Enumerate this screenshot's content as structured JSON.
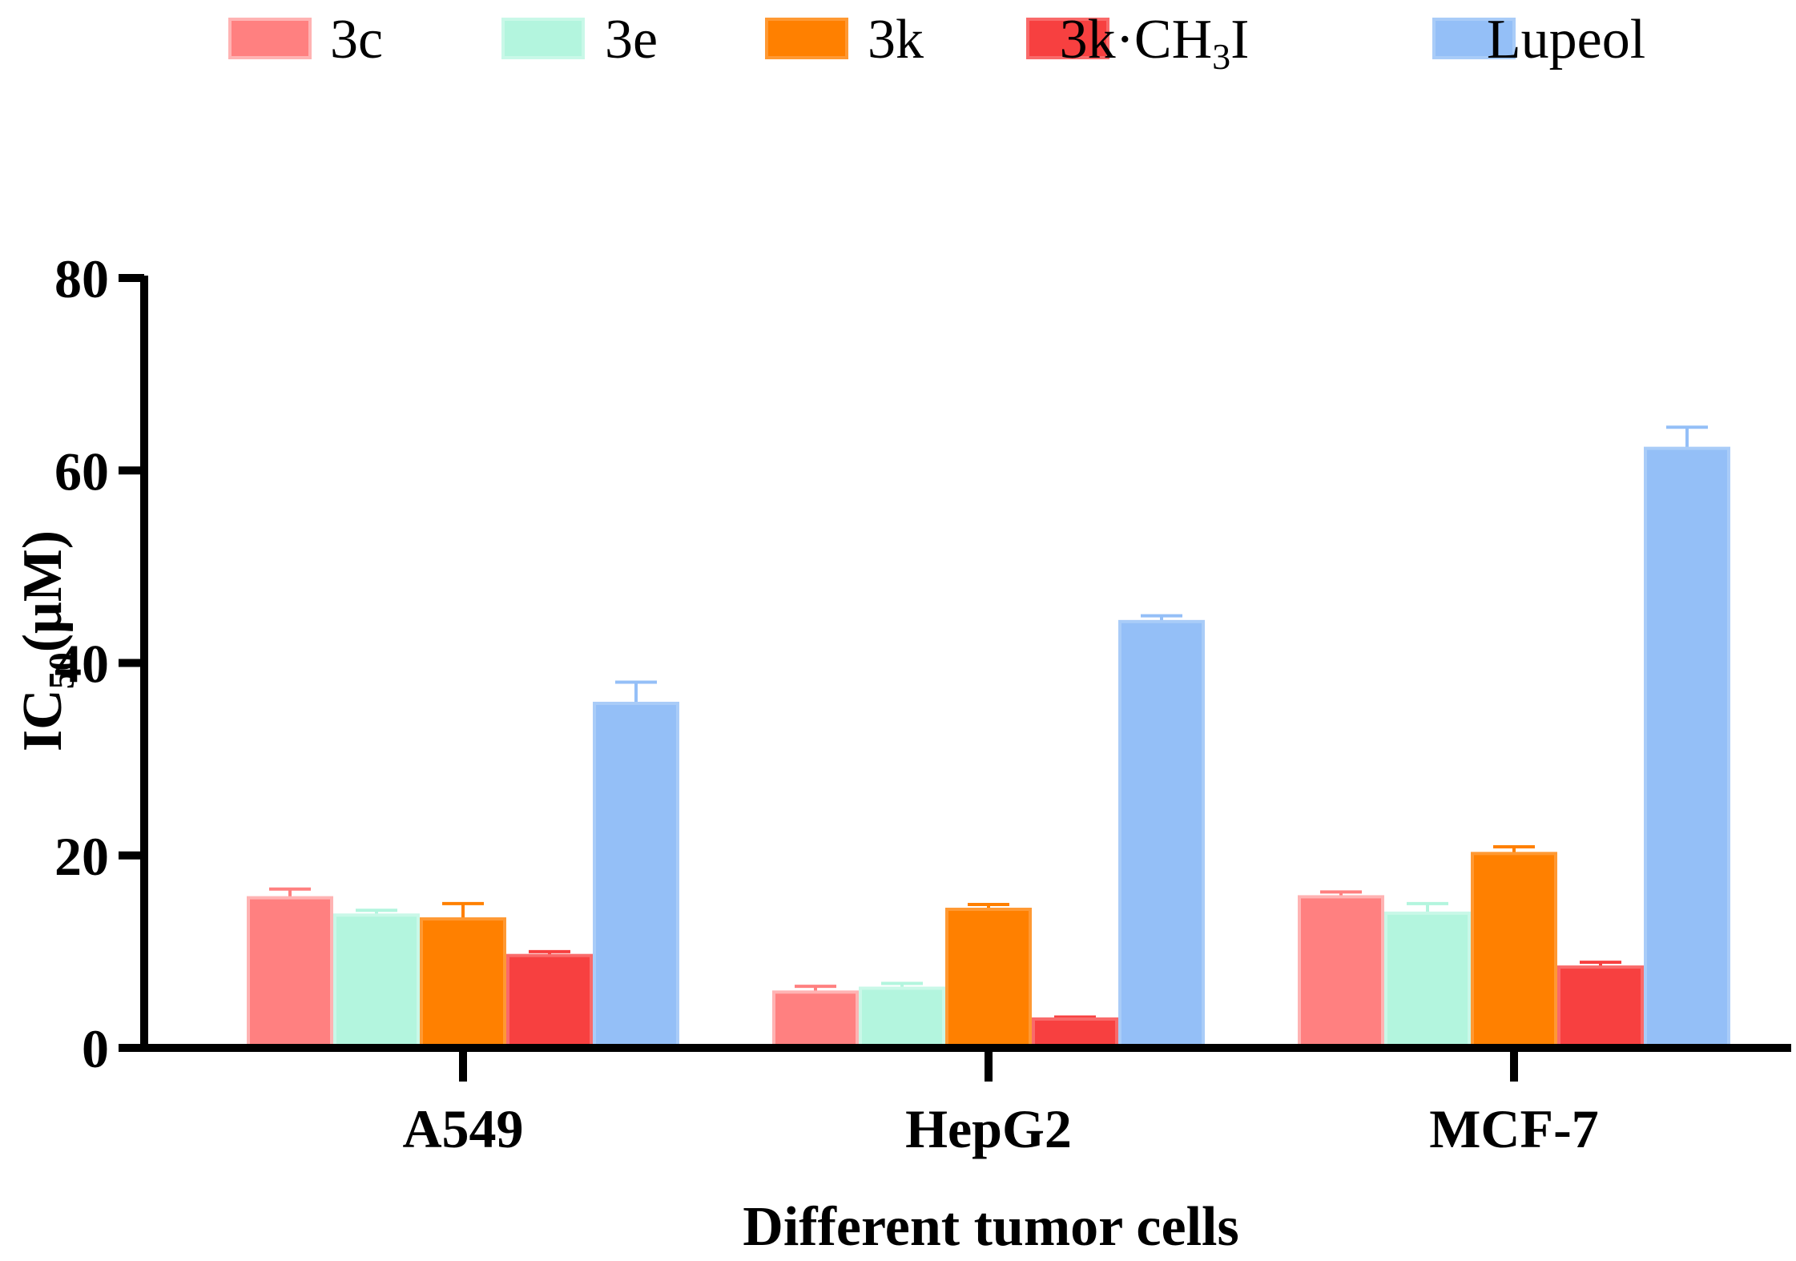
{
  "chart_data": {
    "type": "bar",
    "xlabel": "Different tumor cells",
    "ylabel": {
      "main": "IC",
      "sub": "50",
      "tail": "(μM)"
    },
    "ylim": [
      0,
      80
    ],
    "yticks": [
      0,
      20,
      40,
      60,
      80
    ],
    "categories": [
      "A549",
      "HepG2",
      "MCF-7"
    ],
    "legend_position": "top",
    "grid": false,
    "series": [
      {
        "name": "3c",
        "label_parts": {
          "main": "3c"
        },
        "color": "#ff8080",
        "edge": "#ffb3b3",
        "values": [
          15.6,
          5.8,
          15.7
        ],
        "errors": [
          0.9,
          0.6,
          0.5
        ]
      },
      {
        "name": "3e",
        "label_parts": {
          "main": "3e"
        },
        "color": "#b3f5de",
        "edge": "#c9f8e8",
        "values": [
          13.8,
          6.2,
          14.0
        ],
        "errors": [
          0.5,
          0.5,
          1.0
        ]
      },
      {
        "name": "3k",
        "label_parts": {
          "main": "3k"
        },
        "color": "#ff8000",
        "edge": "#ff9933",
        "values": [
          13.4,
          14.4,
          20.2
        ],
        "errors": [
          1.6,
          0.5,
          0.7
        ]
      },
      {
        "name": "3k·CH3I",
        "label_parts": {
          "main": "3k·CH",
          "sub": "3",
          "tail": "I"
        },
        "color": "#f74040",
        "edge": "#f96a6a",
        "values": [
          9.6,
          3.0,
          8.4
        ],
        "errors": [
          0.4,
          0.2,
          0.5
        ]
      },
      {
        "name": "Lupeol",
        "label_parts": {
          "main": "Lupeol"
        },
        "color": "#94bff7",
        "edge": "#a9ccf8",
        "values": [
          35.8,
          44.3,
          62.3
        ],
        "errors": [
          2.2,
          0.6,
          2.2
        ]
      }
    ]
  }
}
